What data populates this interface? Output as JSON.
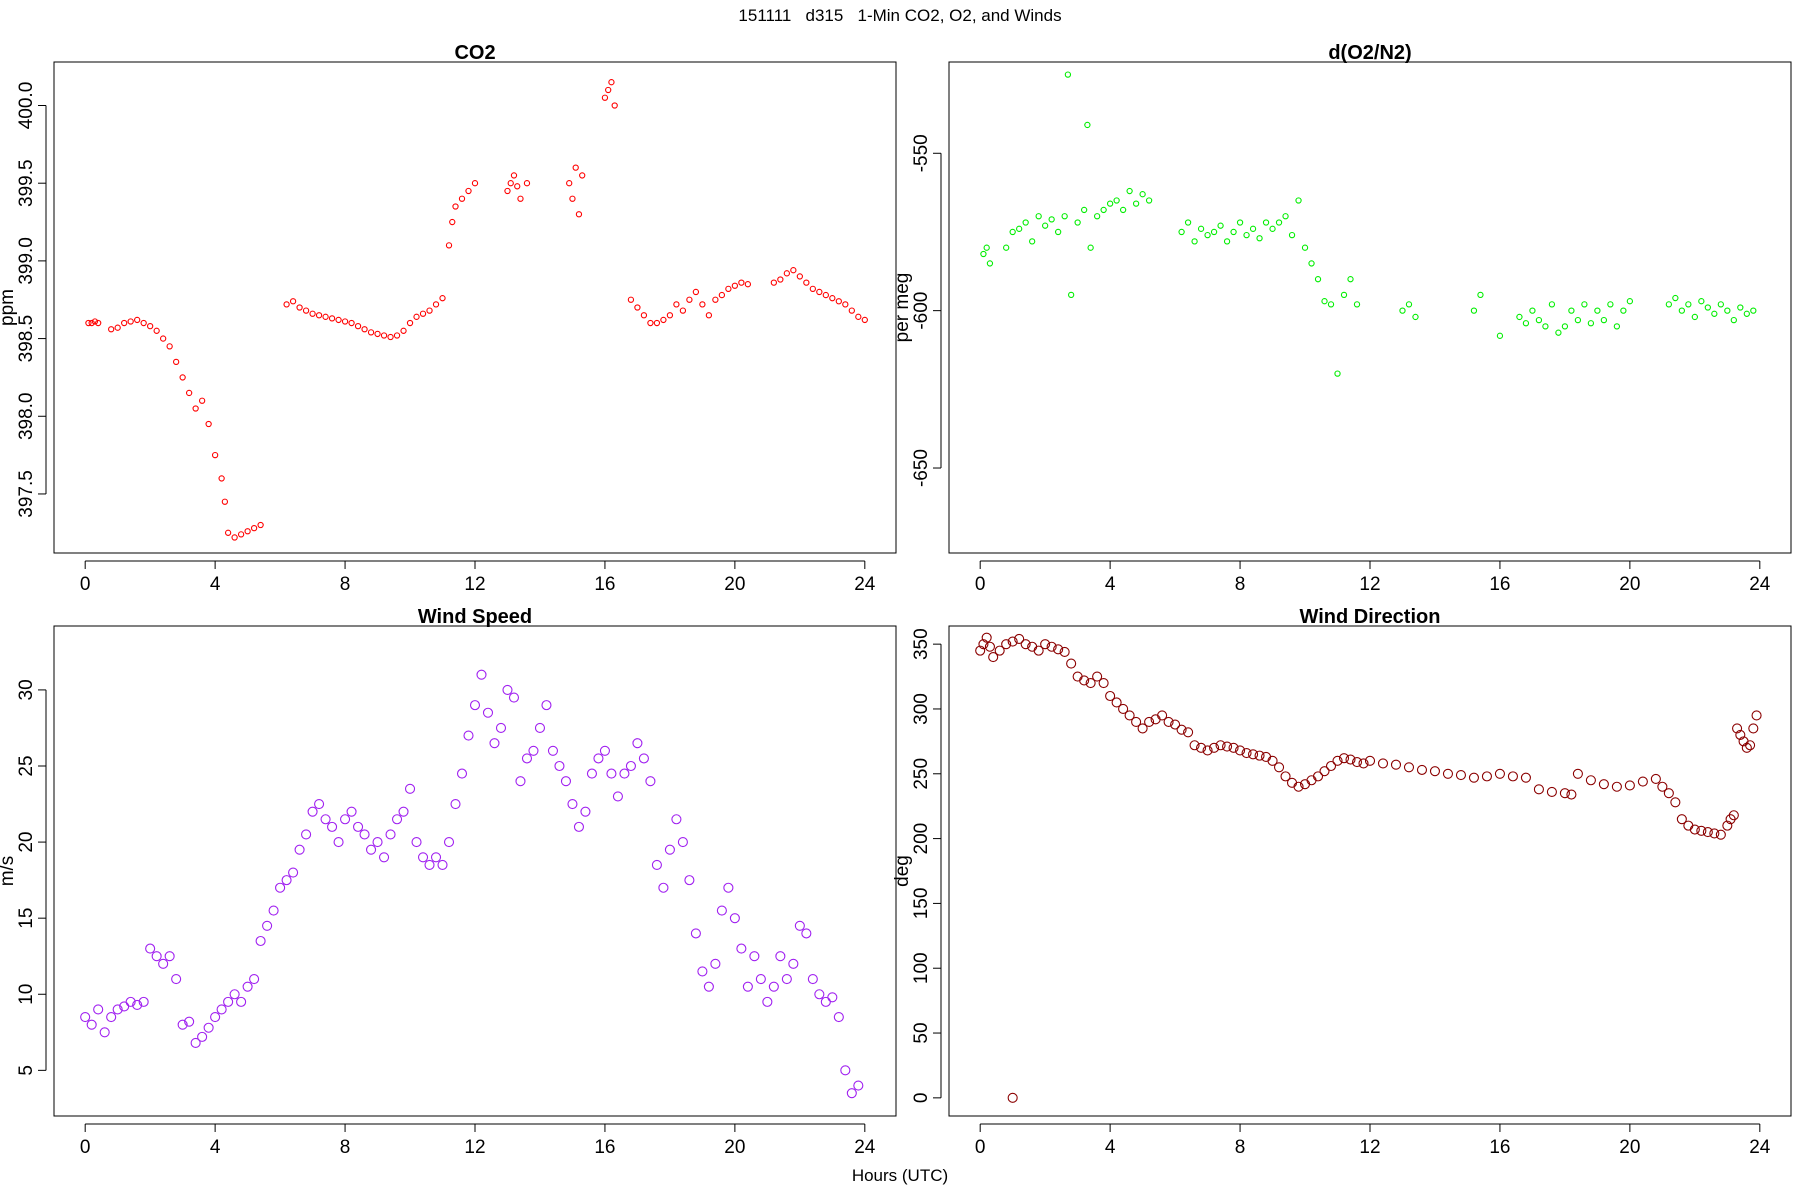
{
  "page": {
    "title": "151111   d315   1-Min CO2, O2, and Winds",
    "xlabel": "Hours (UTC)"
  },
  "chart_data": [
    {
      "type": "scatter",
      "title": "CO2",
      "xlabel": "",
      "ylabel": "ppm",
      "color": "#ff0000",
      "xlim": [
        -0.96,
        24.96
      ],
      "ylim": [
        397.12,
        400.28
      ],
      "xticks": [
        0,
        4,
        8,
        12,
        16,
        20,
        24
      ],
      "yticks": [
        397.5,
        398.0,
        398.5,
        399.0,
        399.5,
        400.0
      ],
      "ytick_labels": [
        "397.5",
        "398.0",
        "398.5",
        "399.0",
        "399.5",
        "400.0"
      ],
      "grid": false,
      "series": [
        {
          "x": [
            0.1,
            0.2,
            0.3,
            0.4,
            0.8,
            1.0,
            1.2,
            1.4,
            1.6,
            1.8,
            2.0,
            2.2,
            2.4,
            2.6,
            2.8,
            3.0,
            3.2,
            3.4,
            3.6,
            3.8,
            4.0,
            4.2,
            4.3,
            4.4,
            4.6,
            4.8,
            5.0,
            5.2,
            5.4,
            6.2,
            6.4,
            6.6,
            6.8,
            7.0,
            7.2,
            7.4,
            7.6,
            7.8,
            8.0,
            8.2,
            8.4,
            8.6,
            8.8,
            9.0,
            9.2,
            9.4,
            9.6,
            9.8,
            10.0,
            10.2,
            10.4,
            10.6,
            10.8,
            11.0,
            11.2,
            11.3,
            11.4,
            11.6,
            11.8,
            12.0,
            13.0,
            13.1,
            13.2,
            13.3,
            13.4,
            13.6,
            14.9,
            15.0,
            15.1,
            15.2,
            15.3,
            16.0,
            16.1,
            16.2,
            16.3,
            16.8,
            17.0,
            17.2,
            17.4,
            17.6,
            17.8,
            18.0,
            18.2,
            18.4,
            18.6,
            18.8,
            19.0,
            19.2,
            19.4,
            19.6,
            19.8,
            20.0,
            20.2,
            20.4,
            21.2,
            21.4,
            21.6,
            21.8,
            22.0,
            22.2,
            22.4,
            22.6,
            22.8,
            23.0,
            23.2,
            23.4,
            23.6,
            23.8,
            24.0
          ],
          "y": [
            398.6,
            398.6,
            398.61,
            398.6,
            398.56,
            398.57,
            398.6,
            398.61,
            398.62,
            398.6,
            398.58,
            398.55,
            398.5,
            398.45,
            398.35,
            398.25,
            398.15,
            398.05,
            398.1,
            397.95,
            397.75,
            397.6,
            397.45,
            397.25,
            397.22,
            397.24,
            397.26,
            397.28,
            397.3,
            398.72,
            398.74,
            398.7,
            398.68,
            398.66,
            398.65,
            398.64,
            398.63,
            398.62,
            398.61,
            398.6,
            398.58,
            398.56,
            398.54,
            398.53,
            398.52,
            398.51,
            398.52,
            398.55,
            398.6,
            398.64,
            398.66,
            398.68,
            398.72,
            398.76,
            399.1,
            399.25,
            399.35,
            399.4,
            399.45,
            399.5,
            399.45,
            399.5,
            399.55,
            399.48,
            399.4,
            399.5,
            399.5,
            399.4,
            399.6,
            399.3,
            399.55,
            400.05,
            400.1,
            400.15,
            400.0,
            398.75,
            398.7,
            398.65,
            398.6,
            398.6,
            398.62,
            398.65,
            398.72,
            398.68,
            398.75,
            398.8,
            398.72,
            398.65,
            398.75,
            398.78,
            398.82,
            398.84,
            398.86,
            398.85,
            398.86,
            398.88,
            398.92,
            398.94,
            398.9,
            398.86,
            398.82,
            398.8,
            398.78,
            398.76,
            398.74,
            398.72,
            398.68,
            398.64,
            398.62
          ]
        }
      ]
    },
    {
      "type": "scatter",
      "title": "d(O2/N2)",
      "xlabel": "",
      "ylabel": "per meg",
      "color": "#00ee00",
      "xlim": [
        -0.96,
        24.96
      ],
      "ylim": [
        -677,
        -521
      ],
      "xticks": [
        0,
        4,
        8,
        12,
        16,
        20,
        24
      ],
      "yticks": [
        -650,
        -600,
        -550
      ],
      "ytick_labels": [
        "-650",
        "-600",
        "-550"
      ],
      "grid": false,
      "series": [
        {
          "x": [
            0.1,
            0.2,
            0.3,
            0.8,
            1.0,
            1.2,
            1.4,
            1.6,
            1.8,
            2.0,
            2.2,
            2.4,
            2.6,
            2.7,
            2.8,
            3.0,
            3.2,
            3.3,
            3.4,
            3.6,
            3.8,
            4.0,
            4.2,
            4.4,
            4.6,
            4.8,
            5.0,
            5.2,
            6.2,
            6.4,
            6.6,
            6.8,
            7.0,
            7.2,
            7.4,
            7.6,
            7.8,
            8.0,
            8.2,
            8.4,
            8.6,
            8.8,
            9.0,
            9.2,
            9.4,
            9.6,
            9.8,
            10.0,
            10.2,
            10.4,
            10.6,
            10.8,
            11.0,
            11.2,
            11.4,
            11.6,
            13.0,
            13.2,
            13.4,
            15.2,
            15.4,
            16.0,
            16.6,
            16.8,
            17.0,
            17.2,
            17.4,
            17.6,
            17.8,
            18.0,
            18.2,
            18.4,
            18.6,
            18.8,
            19.0,
            19.2,
            19.4,
            19.6,
            19.8,
            20.0,
            21.2,
            21.4,
            21.6,
            21.8,
            22.0,
            22.2,
            22.4,
            22.6,
            22.8,
            23.0,
            23.2,
            23.4,
            23.6,
            23.8
          ],
          "y": [
            -582,
            -580,
            -585,
            -580,
            -575,
            -574,
            -572,
            -578,
            -570,
            -573,
            -571,
            -575,
            -570,
            -525,
            -595,
            -572,
            -568,
            -541,
            -580,
            -570,
            -568,
            -566,
            -565,
            -568,
            -562,
            -566,
            -563,
            -565,
            -575,
            -572,
            -578,
            -574,
            -576,
            -575,
            -573,
            -578,
            -575,
            -572,
            -576,
            -574,
            -577,
            -572,
            -574,
            -572,
            -570,
            -576,
            -565,
            -580,
            -585,
            -590,
            -597,
            -598,
            -620,
            -595,
            -590,
            -598,
            -600,
            -598,
            -602,
            -600,
            -595,
            -608,
            -602,
            -604,
            -600,
            -603,
            -605,
            -598,
            -607,
            -605,
            -600,
            -603,
            -598,
            -604,
            -600,
            -603,
            -598,
            -605,
            -600,
            -597,
            -598,
            -596,
            -600,
            -598,
            -602,
            -597,
            -599,
            -601,
            -598,
            -600,
            -603,
            -599,
            -601,
            -600
          ]
        }
      ]
    },
    {
      "type": "scatter",
      "title": "Wind Speed",
      "xlabel": "",
      "ylabel": "m/s",
      "color": "#a020f0",
      "xlim": [
        -0.96,
        24.96
      ],
      "ylim": [
        2.0,
        34.2
      ],
      "xticks": [
        0,
        4,
        8,
        12,
        16,
        20,
        24
      ],
      "yticks": [
        5,
        10,
        15,
        20,
        25,
        30
      ],
      "ytick_labels": [
        "5",
        "10",
        "15",
        "20",
        "25",
        "30"
      ],
      "grid": false,
      "series": [
        {
          "x": [
            0.0,
            0.2,
            0.4,
            0.6,
            0.8,
            1.0,
            1.2,
            1.4,
            1.6,
            1.8,
            2.0,
            2.2,
            2.4,
            2.6,
            2.8,
            3.0,
            3.2,
            3.4,
            3.6,
            3.8,
            4.0,
            4.2,
            4.4,
            4.6,
            4.8,
            5.0,
            5.2,
            5.4,
            5.6,
            5.8,
            6.0,
            6.2,
            6.4,
            6.6,
            6.8,
            7.0,
            7.2,
            7.4,
            7.6,
            7.8,
            8.0,
            8.2,
            8.4,
            8.6,
            8.8,
            9.0,
            9.2,
            9.4,
            9.6,
            9.8,
            10.0,
            10.2,
            10.4,
            10.6,
            10.8,
            11.0,
            11.2,
            11.4,
            11.6,
            11.8,
            12.0,
            12.2,
            12.4,
            12.6,
            12.8,
            13.0,
            13.2,
            13.4,
            13.6,
            13.8,
            14.0,
            14.2,
            14.4,
            14.6,
            14.8,
            15.0,
            15.2,
            15.4,
            15.6,
            15.8,
            16.0,
            16.2,
            16.4,
            16.6,
            16.8,
            17.0,
            17.2,
            17.4,
            17.6,
            17.8,
            18.0,
            18.2,
            18.4,
            18.6,
            18.8,
            19.0,
            19.2,
            19.4,
            19.6,
            19.8,
            20.0,
            20.2,
            20.4,
            20.6,
            20.8,
            21.0,
            21.2,
            21.4,
            21.6,
            21.8,
            22.0,
            22.2,
            22.4,
            22.6,
            22.8,
            23.0,
            23.2,
            23.4,
            23.6,
            23.8
          ],
          "y": [
            8.5,
            8.0,
            9.0,
            7.5,
            8.5,
            9.0,
            9.2,
            9.5,
            9.3,
            9.5,
            13.0,
            12.5,
            12.0,
            12.5,
            11.0,
            8.0,
            8.2,
            6.8,
            7.2,
            7.8,
            8.5,
            9.0,
            9.5,
            10.0,
            9.5,
            10.5,
            11.0,
            13.5,
            14.5,
            15.5,
            17.0,
            17.5,
            18.0,
            19.5,
            20.5,
            22.0,
            22.5,
            21.5,
            21.0,
            20.0,
            21.5,
            22.0,
            21.0,
            20.5,
            19.5,
            20.0,
            19.0,
            20.5,
            21.5,
            22.0,
            23.5,
            20.0,
            19.0,
            18.5,
            19.0,
            18.5,
            20.0,
            22.5,
            24.5,
            27.0,
            29.0,
            31.0,
            28.5,
            26.5,
            27.5,
            30.0,
            29.5,
            24.0,
            25.5,
            26.0,
            27.5,
            29.0,
            26.0,
            25.0,
            24.0,
            22.5,
            21.0,
            22.0,
            24.5,
            25.5,
            26.0,
            24.5,
            23.0,
            24.5,
            25.0,
            26.5,
            25.5,
            24.0,
            18.5,
            17.0,
            19.5,
            21.5,
            20.0,
            17.5,
            14.0,
            11.5,
            10.5,
            12.0,
            15.5,
            17.0,
            15.0,
            13.0,
            10.5,
            12.5,
            11.0,
            9.5,
            10.5,
            12.5,
            11.0,
            12.0,
            14.5,
            14.0,
            11.0,
            10.0,
            9.5,
            9.8,
            8.5,
            5.0,
            3.5,
            4.0
          ]
        }
      ]
    },
    {
      "type": "scatter",
      "title": "Wind Direction",
      "xlabel": "",
      "ylabel": "deg",
      "color": "#8b0000",
      "xlim": [
        -0.96,
        24.96
      ],
      "ylim": [
        -14,
        364
      ],
      "xticks": [
        0,
        4,
        8,
        12,
        16,
        20,
        24
      ],
      "yticks": [
        0,
        50,
        100,
        150,
        200,
        250,
        300,
        350
      ],
      "ytick_labels": [
        "0",
        "50",
        "100",
        "150",
        "200",
        "250",
        "300",
        "350"
      ],
      "grid": false,
      "series": [
        {
          "x": [
            0.0,
            0.1,
            0.2,
            0.3,
            0.4,
            0.6,
            0.8,
            1.0,
            1.2,
            1.4,
            1.6,
            1.8,
            2.0,
            2.2,
            2.4,
            2.6,
            2.8,
            3.0,
            3.2,
            3.4,
            3.6,
            3.8,
            4.0,
            4.2,
            4.4,
            4.6,
            4.8,
            5.0,
            5.2,
            5.4,
            5.6,
            5.8,
            6.0,
            6.2,
            6.4,
            6.6,
            6.8,
            7.0,
            7.2,
            7.4,
            7.6,
            7.8,
            8.0,
            8.2,
            8.4,
            8.6,
            8.8,
            9.0,
            9.2,
            9.4,
            9.6,
            9.8,
            10.0,
            10.2,
            10.4,
            10.6,
            10.8,
            11.0,
            11.2,
            11.4,
            11.6,
            11.8,
            12.0,
            12.4,
            12.8,
            13.2,
            13.6,
            14.0,
            14.4,
            14.8,
            15.2,
            15.6,
            16.0,
            16.4,
            16.8,
            17.2,
            17.6,
            18.0,
            18.2,
            18.4,
            18.8,
            19.2,
            19.6,
            20.0,
            20.4,
            20.8,
            21.0,
            21.2,
            21.4,
            21.6,
            21.8,
            22.0,
            22.2,
            22.4,
            22.6,
            22.8,
            23.0,
            23.1,
            23.2,
            23.3,
            23.4,
            23.5,
            23.6,
            23.7,
            23.8,
            23.9,
            1.0
          ],
          "y": [
            345,
            350,
            355,
            348,
            340,
            345,
            350,
            352,
            354,
            350,
            348,
            345,
            350,
            348,
            346,
            344,
            335,
            325,
            322,
            320,
            325,
            320,
            310,
            305,
            300,
            295,
            290,
            285,
            290,
            292,
            295,
            290,
            288,
            284,
            282,
            272,
            270,
            268,
            270,
            272,
            271,
            270,
            268,
            266,
            265,
            264,
            263,
            260,
            255,
            248,
            243,
            240,
            242,
            245,
            248,
            252,
            256,
            260,
            262,
            261,
            259,
            258,
            260,
            258,
            257,
            255,
            253,
            252,
            250,
            249,
            247,
            248,
            250,
            248,
            247,
            238,
            236,
            235,
            234,
            250,
            245,
            242,
            240,
            241,
            244,
            246,
            240,
            235,
            228,
            215,
            210,
            207,
            206,
            205,
            204,
            203,
            210,
            215,
            218,
            285,
            280,
            275,
            270,
            272,
            285,
            295,
            0
          ]
        }
      ]
    }
  ]
}
